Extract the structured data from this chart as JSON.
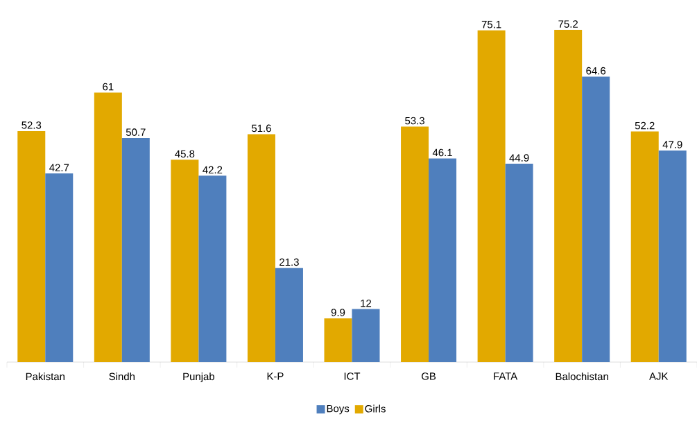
{
  "chart_data": {
    "type": "bar",
    "categories": [
      "Pakistan",
      "Sindh",
      "Punjab",
      "K-P",
      "ICT",
      "GB",
      "FATA",
      "Balochistan",
      "AJK"
    ],
    "series": [
      {
        "name": "Girls",
        "color": "#e2a900",
        "values": [
          52.3,
          61,
          45.8,
          51.6,
          9.9,
          53.3,
          75.1,
          75.2,
          52.2
        ]
      },
      {
        "name": "Boys",
        "color": "#4f7fbd",
        "values": [
          42.7,
          50.7,
          42.2,
          21.3,
          12,
          46.1,
          44.9,
          64.6,
          47.9
        ]
      }
    ],
    "data_labels": true,
    "legend": "bottom",
    "tick_labels": "x"
  }
}
